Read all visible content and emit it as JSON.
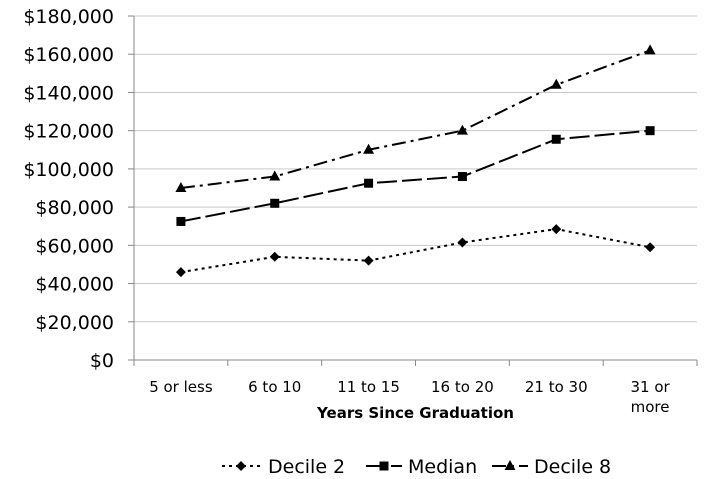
{
  "chart_data": {
    "type": "line",
    "title": "",
    "xlabel": "Years Since Graduation",
    "ylabel": "",
    "categories": [
      "5 or less",
      "6 to 10",
      "11 to 15",
      "16 to 20",
      "21 to 30",
      "31 or more"
    ],
    "category_lines": [
      [
        "5 or less"
      ],
      [
        "6 to 10"
      ],
      [
        "11 to 15"
      ],
      [
        "16 to 20"
      ],
      [
        "21 to 30"
      ],
      [
        "31 or",
        "more"
      ]
    ],
    "ylim": [
      0,
      180000
    ],
    "y_ticks": [
      0,
      20000,
      40000,
      60000,
      80000,
      100000,
      120000,
      140000,
      160000,
      180000
    ],
    "y_tick_labels": [
      "$0",
      "$20,000",
      "$40,000",
      "$60,000",
      "$80,000",
      "$100,000",
      "$120,000",
      "$140,000",
      "$160,000",
      "$180,000"
    ],
    "grid": true,
    "legend_position": "bottom",
    "series": [
      {
        "name": "Decile 2",
        "values": [
          46000,
          54000,
          52000,
          61500,
          68500,
          59000
        ],
        "marker": "diamond",
        "dash": "dotted",
        "color": "#000000"
      },
      {
        "name": "Median",
        "values": [
          72500,
          82000,
          92500,
          96000,
          115500,
          120000
        ],
        "marker": "square",
        "dash": "long-dash",
        "color": "#000000"
      },
      {
        "name": "Decile 8",
        "values": [
          90000,
          96000,
          110000,
          120000,
          144000,
          162000
        ],
        "marker": "triangle",
        "dash": "dash-dot",
        "color": "#000000"
      }
    ]
  }
}
